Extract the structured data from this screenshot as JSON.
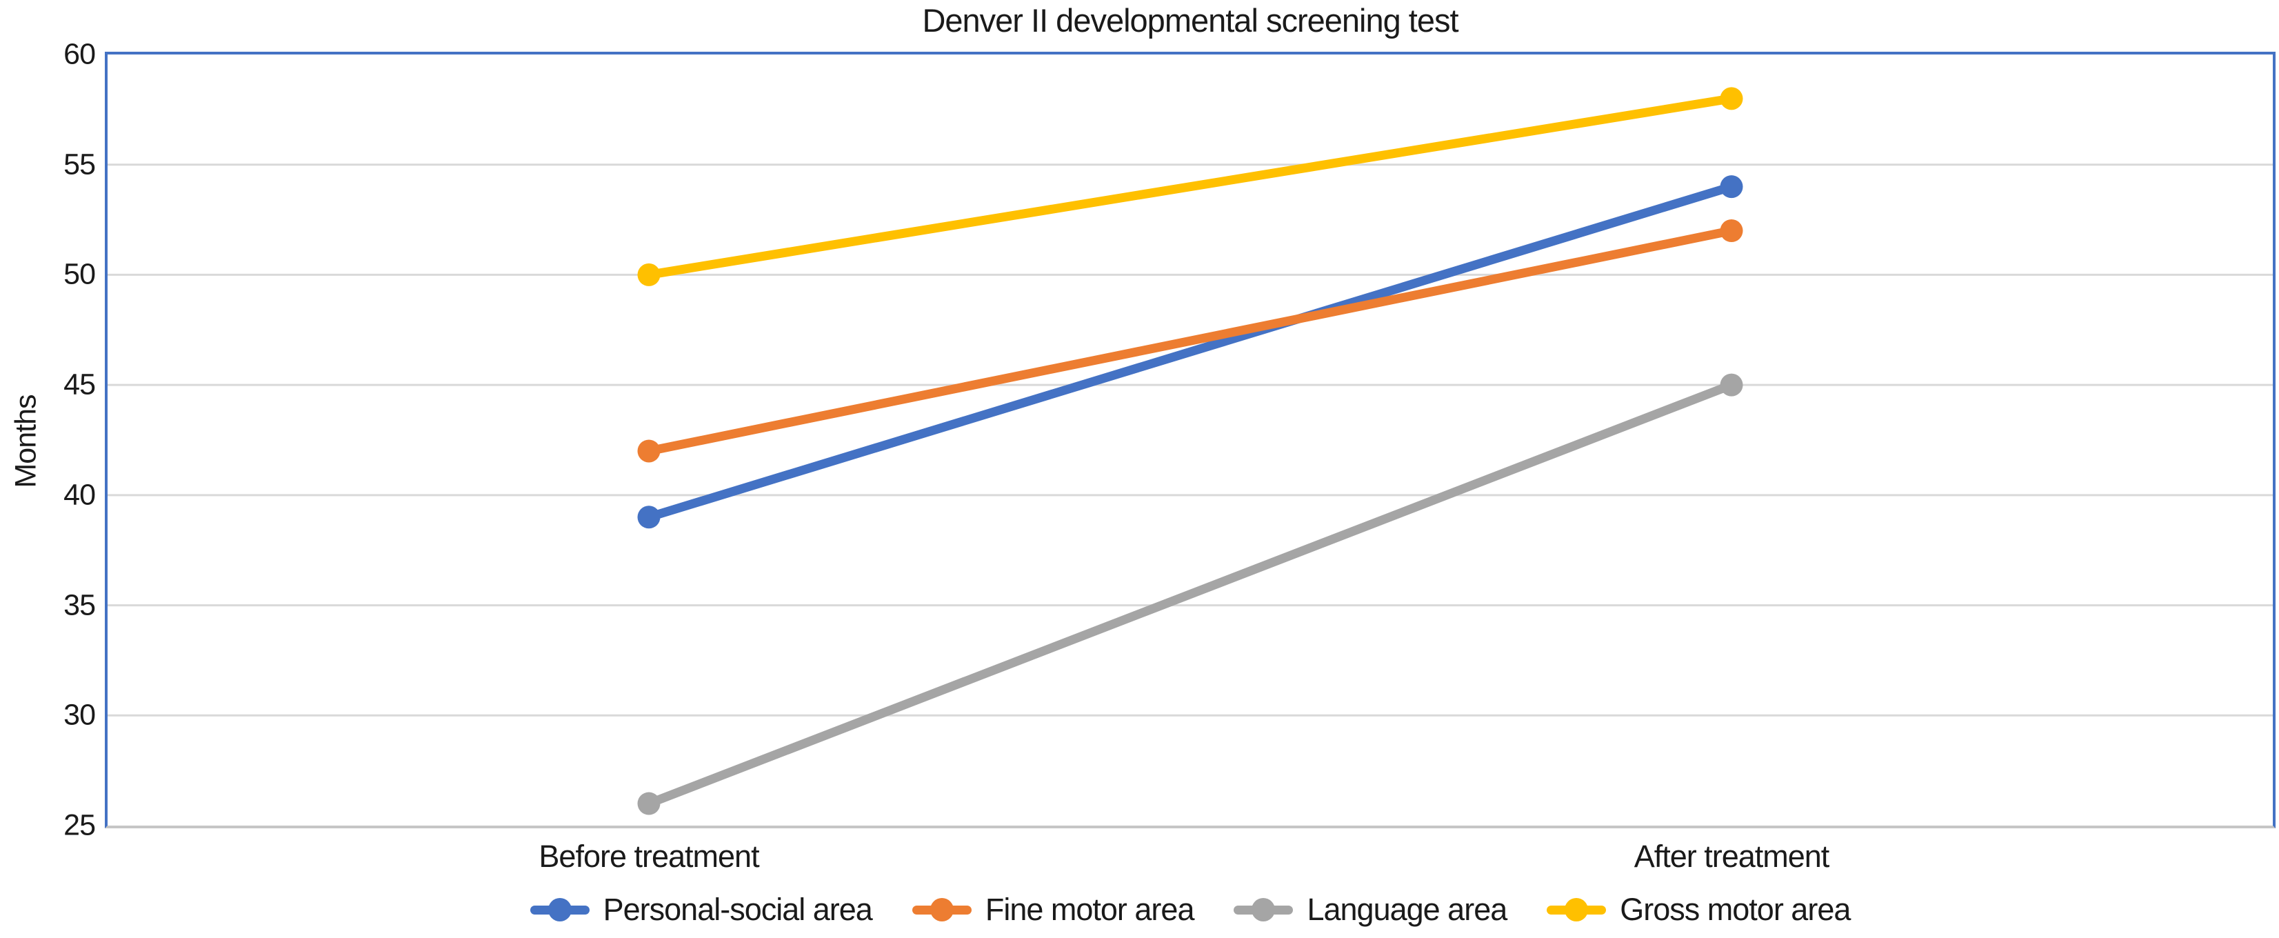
{
  "chart_data": {
    "type": "line",
    "title": "Denver II developmental screening test",
    "ylabel": "Months",
    "xlabel": "",
    "categories": [
      "Before treatment",
      "After treatment"
    ],
    "series": [
      {
        "name": "Personal-social area",
        "color": "#4472C4",
        "values": [
          39,
          54
        ]
      },
      {
        "name": "Fine motor area",
        "color": "#ED7D31",
        "values": [
          42,
          52
        ]
      },
      {
        "name": "Language area",
        "color": "#A5A5A5",
        "values": [
          26,
          45
        ]
      },
      {
        "name": "Gross motor area",
        "color": "#FFC000",
        "values": [
          50,
          58
        ]
      }
    ],
    "ylim": [
      25,
      60
    ],
    "yticks": [
      25,
      30,
      35,
      40,
      45,
      50,
      55,
      60
    ],
    "grid": true,
    "legend_position": "bottom",
    "marker": "circle",
    "colors": {
      "plot_border": "#4472C4",
      "gridline": "#D9D9D9",
      "baseline": "#C6C6C6",
      "text": "#1a1a1a"
    }
  }
}
